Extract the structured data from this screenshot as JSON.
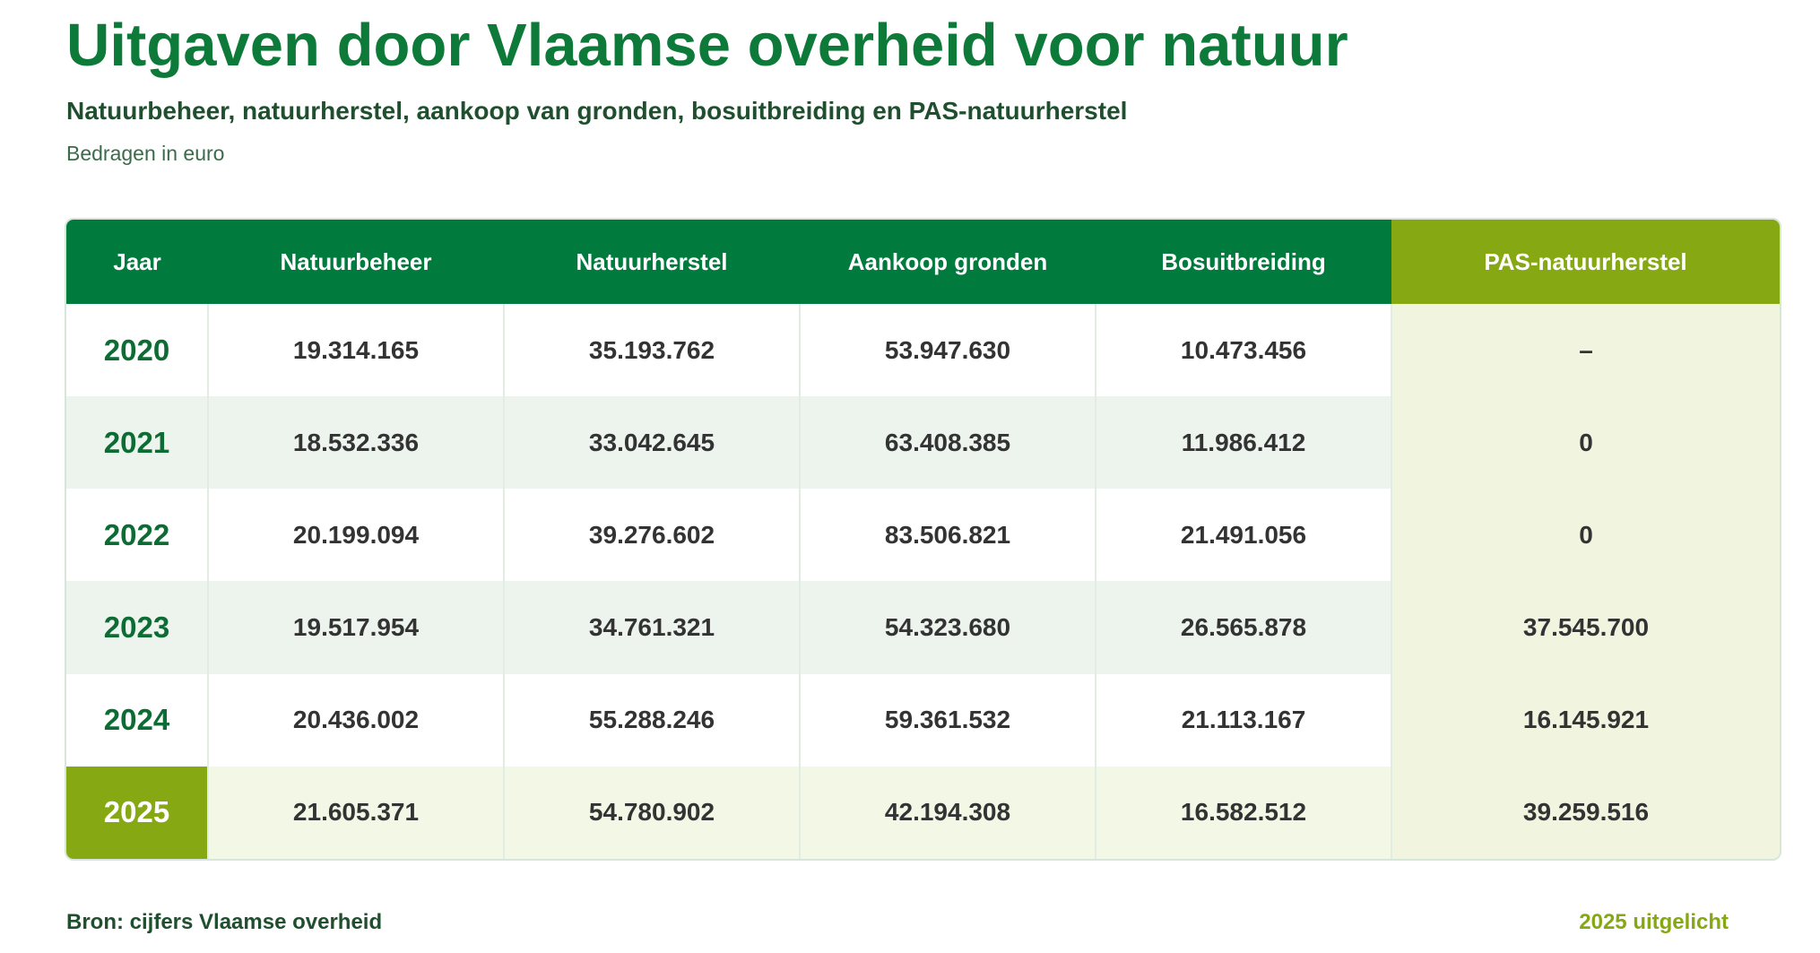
{
  "chart_data": {
    "type": "table",
    "title": "Uitgaven door Vlaamse overheid voor natuur",
    "subtitle": "Natuurbeheer, natuurherstel, aankoop van gronden, bosuitbreiding en PAS-natuurherstel",
    "unit_note": "Bedragen in euro",
    "columns": [
      "Jaar",
      "Natuurbeheer",
      "Natuurherstel",
      "Aankoop gronden",
      "Bosuitbreiding",
      "PAS-natuurherstel"
    ],
    "rows": [
      [
        "2020",
        "19.314.165",
        "35.193.762",
        "53.947.630",
        "10.473.456",
        "–"
      ],
      [
        "2021",
        "18.532.336",
        "33.042.645",
        "63.408.385",
        "11.986.412",
        "0"
      ],
      [
        "2022",
        "20.199.094",
        "39.276.602",
        "83.506.821",
        "21.491.056",
        "0"
      ],
      [
        "2023",
        "19.517.954",
        "34.761.321",
        "54.323.680",
        "26.565.878",
        "37.545.700"
      ],
      [
        "2024",
        "20.436.002",
        "55.288.246",
        "59.361.532",
        "21.113.167",
        "16.145.921"
      ],
      [
        "2025",
        "21.605.371",
        "54.780.902",
        "42.194.308",
        "16.582.512",
        "39.259.516"
      ]
    ],
    "highlighted_year": "2025",
    "source": "Bron: cijfers Vlaamse overheid",
    "highlight_note": "2025 uitgelicht"
  },
  "colors": {
    "header_green": "#007a3d",
    "pas_header_lime": "#86a812",
    "title_green": "#0d7a3a",
    "stripe": "#ecf4ed",
    "pas_column_tint": "#f1f5e0"
  }
}
